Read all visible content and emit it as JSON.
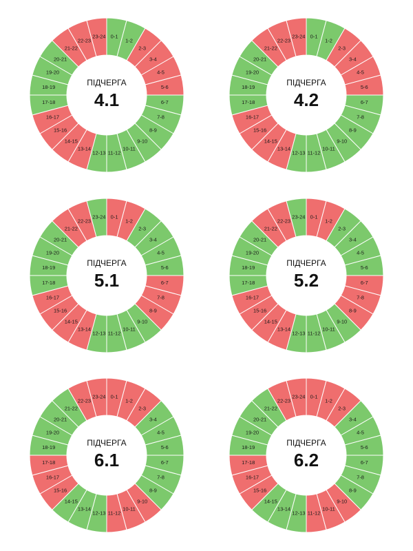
{
  "colors": {
    "on": "#7cc96c",
    "off": "#ef6e6e",
    "separator": "#ffffff",
    "text": "#111111"
  },
  "hour_labels": [
    "0-1",
    "1-2",
    "2-3",
    "3-4",
    "4-5",
    "5-6",
    "6-7",
    "7-8",
    "8-9",
    "9-10",
    "10-11",
    "11-12",
    "12-13",
    "13-14",
    "14-15",
    "15-16",
    "16-17",
    "17-18",
    "18-19",
    "19-20",
    "20-21",
    "21-22",
    "22-23",
    "23-24"
  ],
  "chart_data": [
    {
      "type": "pie",
      "title": "ПІДЧЕРГА",
      "queue": "4.1",
      "status": [
        "on",
        "on",
        "off",
        "off",
        "off",
        "off",
        "on",
        "on",
        "on",
        "on",
        "on",
        "on",
        "on",
        "off",
        "off",
        "off",
        "off",
        "on",
        "on",
        "on",
        "on",
        "off",
        "off",
        "off"
      ]
    },
    {
      "type": "pie",
      "title": "ПІДЧЕРГА",
      "queue": "4.2",
      "status": [
        "on",
        "on",
        "off",
        "off",
        "off",
        "off",
        "on",
        "on",
        "on",
        "on",
        "on",
        "on",
        "on",
        "off",
        "off",
        "off",
        "off",
        "on",
        "on",
        "on",
        "on",
        "off",
        "off",
        "off"
      ]
    },
    {
      "type": "pie",
      "title": "ПІДЧЕРГА",
      "queue": "5.1",
      "status": [
        "off",
        "off",
        "on",
        "on",
        "on",
        "on",
        "off",
        "off",
        "off",
        "on",
        "on",
        "on",
        "on",
        "off",
        "off",
        "off",
        "off",
        "on",
        "on",
        "on",
        "on",
        "off",
        "off",
        "on"
      ]
    },
    {
      "type": "pie",
      "title": "ПІДЧЕРГА",
      "queue": "5.2",
      "status": [
        "off",
        "off",
        "on",
        "on",
        "on",
        "on",
        "off",
        "off",
        "off",
        "on",
        "on",
        "on",
        "on",
        "off",
        "off",
        "off",
        "off",
        "on",
        "on",
        "on",
        "on",
        "off",
        "off",
        "on"
      ]
    },
    {
      "type": "pie",
      "title": "ПІДЧЕРГА",
      "queue": "6.1",
      "status": [
        "off",
        "off",
        "off",
        "on",
        "on",
        "on",
        "on",
        "on",
        "on",
        "off",
        "off",
        "off",
        "on",
        "on",
        "on",
        "off",
        "off",
        "off",
        "on",
        "on",
        "on",
        "on",
        "off",
        "off"
      ]
    },
    {
      "type": "pie",
      "title": "ПІДЧЕРГА",
      "queue": "6.2",
      "status": [
        "off",
        "off",
        "off",
        "on",
        "on",
        "on",
        "on",
        "on",
        "on",
        "off",
        "off",
        "off",
        "on",
        "on",
        "on",
        "off",
        "off",
        "off",
        "on",
        "on",
        "on",
        "on",
        "off",
        "off"
      ]
    }
  ]
}
